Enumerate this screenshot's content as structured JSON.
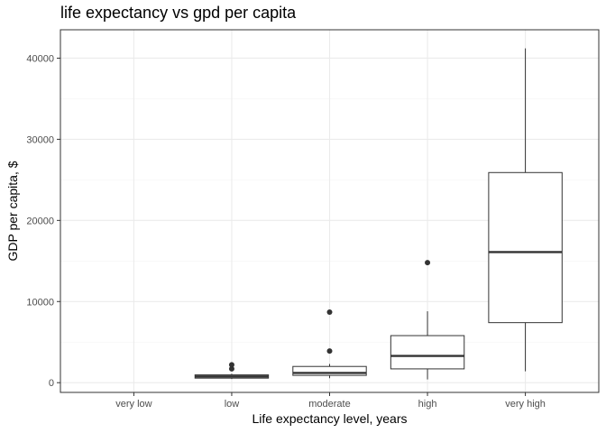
{
  "chart_data": {
    "type": "boxplot",
    "title": "life expectancy vs gpd per capita",
    "xlabel": "Life expectancy level, years",
    "ylabel": "GDP per capita, $",
    "categories": [
      "very low",
      "low",
      "moderate",
      "high",
      "very high"
    ],
    "ylim": [
      -1200,
      43500
    ],
    "yticks": [
      0,
      10000,
      20000,
      30000,
      40000
    ],
    "yticks_labels": [
      "0",
      "10000",
      "20000",
      "30000",
      "40000"
    ],
    "grid": true,
    "boxes": [
      {
        "category": "very low",
        "min": null,
        "q1": null,
        "median": null,
        "q3": null,
        "max": null,
        "outliers": []
      },
      {
        "category": "low",
        "min": 450,
        "q1": 560,
        "median": 760,
        "q3": 960,
        "max": 1100,
        "outliers": [
          1700,
          2200
        ]
      },
      {
        "category": "moderate",
        "min": 550,
        "q1": 900,
        "median": 1200,
        "q3": 2000,
        "max": 2300,
        "outliers": [
          3900,
          8700
        ]
      },
      {
        "category": "high",
        "min": 400,
        "q1": 1700,
        "median": 3300,
        "q3": 5800,
        "max": 8800,
        "outliers": [
          14800
        ]
      },
      {
        "category": "very high",
        "min": 1400,
        "q1": 7400,
        "median": 16100,
        "q3": 25900,
        "max": 41200,
        "outliers": []
      }
    ],
    "colors": {
      "panel_border": "#333333",
      "grid_major": "#ebebeb",
      "grid_minor": "#f3f3f3",
      "box_stroke": "#333333",
      "box_fill": "#ffffff",
      "tick_label": "#4d4d4d",
      "outlier": "#333333"
    }
  }
}
